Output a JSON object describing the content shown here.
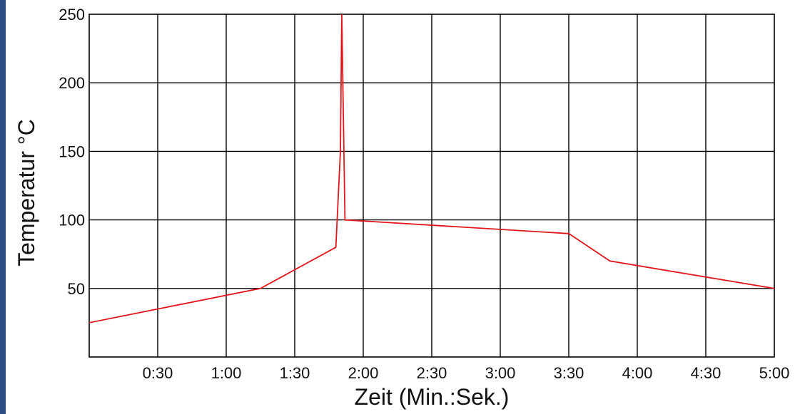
{
  "chart_data": {
    "type": "line",
    "xlabel": "Zeit (Min.:Sek.)",
    "ylabel": "Temperatur °C",
    "xlim": [
      0,
      300
    ],
    "ylim": [
      0,
      250
    ],
    "x_ticks": [
      30,
      60,
      90,
      120,
      150,
      180,
      210,
      240,
      270,
      300
    ],
    "x_tick_labels": [
      "0:30",
      "1:00",
      "1:30",
      "2:00",
      "2:30",
      "3:00",
      "3:30",
      "4:00",
      "4:30",
      "5:00"
    ],
    "y_ticks": [
      50,
      100,
      150,
      200,
      250
    ],
    "y_tick_labels": [
      "50",
      "100",
      "150",
      "200",
      "250"
    ],
    "grid": true,
    "series": [
      {
        "color": "#e0161b",
        "x": [
          0,
          75,
          108,
          110,
          110.6,
          112,
          210,
          228,
          300
        ],
        "y": [
          25,
          50,
          80,
          150,
          250,
          100,
          90,
          70,
          50
        ]
      }
    ]
  },
  "colors": {
    "side_bar": "#2c4e84",
    "grid": "#000000",
    "line": "#e0161b"
  }
}
